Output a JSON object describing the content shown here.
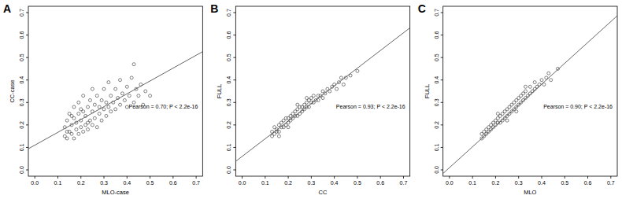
{
  "chart_data": [
    {
      "type": "scatter",
      "title": "A",
      "x_label": "MLO-case",
      "y_label": "CC-case",
      "annotations": [
        "Pearson = 0.70; P < 2.2e-16"
      ],
      "xlim": [
        -0.028,
        0.728
      ],
      "ylim": [
        -0.028,
        0.728
      ],
      "xticks": [
        {
          "value": 0,
          "label": "0.0"
        },
        0.1,
        0.2,
        0.3,
        0.4,
        0.5,
        0.6,
        0.7
      ],
      "yticks": [
        {
          "value": 0,
          "label": "0.0"
        },
        0.1,
        0.2,
        0.3,
        0.4,
        0.5,
        0.6,
        0.7
      ],
      "series": [
        {
          "type": "scatter",
          "marker": "circle",
          "color": "#333333",
          "x": [
            0.13,
            0.13,
            0.14,
            0.14,
            0.15,
            0.15,
            0.16,
            0.16,
            0.17,
            0.17,
            0.17,
            0.18,
            0.18,
            0.19,
            0.19,
            0.19,
            0.2,
            0.2,
            0.21,
            0.21,
            0.21,
            0.22,
            0.22,
            0.23,
            0.23,
            0.24,
            0.24,
            0.25,
            0.25,
            0.25,
            0.26,
            0.26,
            0.27,
            0.27,
            0.28,
            0.28,
            0.29,
            0.29,
            0.3,
            0.3,
            0.31,
            0.31,
            0.32,
            0.32,
            0.33,
            0.33,
            0.34,
            0.35,
            0.35,
            0.36,
            0.37,
            0.37,
            0.38,
            0.39,
            0.4,
            0.4,
            0.41,
            0.42,
            0.43,
            0.44,
            0.45,
            0.46,
            0.47,
            0.48,
            0.43,
            0.5,
            0.14,
            0.16,
            0.2,
            0.23
          ],
          "values": [
            0.15,
            0.19,
            0.14,
            0.22,
            0.17,
            0.25,
            0.16,
            0.2,
            0.14,
            0.23,
            0.28,
            0.18,
            0.21,
            0.16,
            0.25,
            0.3,
            0.19,
            0.22,
            0.17,
            0.26,
            0.33,
            0.2,
            0.24,
            0.18,
            0.28,
            0.22,
            0.31,
            0.2,
            0.26,
            0.36,
            0.23,
            0.29,
            0.19,
            0.33,
            0.25,
            0.28,
            0.22,
            0.31,
            0.27,
            0.36,
            0.24,
            0.3,
            0.28,
            0.39,
            0.26,
            0.33,
            0.3,
            0.27,
            0.36,
            0.32,
            0.29,
            0.4,
            0.34,
            0.31,
            0.37,
            0.28,
            0.33,
            0.41,
            0.3,
            0.36,
            0.33,
            0.38,
            0.29,
            0.35,
            0.47,
            0.33,
            0.17,
            0.24,
            0.27,
            0.21
          ]
        },
        {
          "type": "line",
          "line_style": "solid",
          "color": "#555555",
          "x": [
            -0.028,
            0.728
          ],
          "values": [
            0.094,
            0.526
          ]
        }
      ]
    },
    {
      "type": "scatter",
      "title": "B",
      "x_label": "CC",
      "y_label": "FULL",
      "annotations": [
        "Pearson = 0.93; P < 2.2e-16"
      ],
      "xlim": [
        -0.028,
        0.728
      ],
      "ylim": [
        -0.028,
        0.728
      ],
      "xticks": [
        {
          "value": 0,
          "label": "0.0"
        },
        0.1,
        0.2,
        0.3,
        0.4,
        0.5,
        0.6,
        0.7
      ],
      "yticks": [
        {
          "value": 0,
          "label": "0.0"
        },
        0.1,
        0.2,
        0.3,
        0.4,
        0.5,
        0.6,
        0.7
      ],
      "series": [
        {
          "type": "scatter",
          "marker": "circle",
          "color": "#333333",
          "x": [
            0.13,
            0.13,
            0.14,
            0.14,
            0.15,
            0.15,
            0.16,
            0.16,
            0.17,
            0.17,
            0.18,
            0.18,
            0.19,
            0.19,
            0.2,
            0.2,
            0.21,
            0.21,
            0.22,
            0.22,
            0.23,
            0.23,
            0.24,
            0.24,
            0.25,
            0.25,
            0.26,
            0.26,
            0.27,
            0.27,
            0.28,
            0.28,
            0.29,
            0.29,
            0.3,
            0.3,
            0.31,
            0.31,
            0.32,
            0.33,
            0.33,
            0.34,
            0.35,
            0.35,
            0.36,
            0.37,
            0.38,
            0.39,
            0.4,
            0.41,
            0.42,
            0.43,
            0.44,
            0.45,
            0.47,
            0.5,
            0.2,
            0.24,
            0.16,
            0.28
          ],
          "values": [
            0.15,
            0.17,
            0.16,
            0.19,
            0.17,
            0.18,
            0.17,
            0.2,
            0.19,
            0.21,
            0.19,
            0.22,
            0.2,
            0.23,
            0.21,
            0.23,
            0.22,
            0.24,
            0.23,
            0.25,
            0.24,
            0.26,
            0.24,
            0.27,
            0.25,
            0.28,
            0.26,
            0.28,
            0.27,
            0.29,
            0.28,
            0.3,
            0.28,
            0.31,
            0.3,
            0.32,
            0.3,
            0.33,
            0.31,
            0.33,
            0.31,
            0.33,
            0.35,
            0.32,
            0.34,
            0.36,
            0.35,
            0.37,
            0.38,
            0.36,
            0.39,
            0.41,
            0.38,
            0.41,
            0.42,
            0.44,
            0.19,
            0.29,
            0.15,
            0.32
          ]
        },
        {
          "type": "line",
          "line_style": "solid",
          "color": "#555555",
          "x": [
            -0.028,
            0.728
          ],
          "values": [
            0.038,
            0.632
          ]
        }
      ]
    },
    {
      "type": "scatter",
      "title": "C",
      "x_label": "MLO",
      "y_label": "FULL",
      "annotations": [
        "Pearson = 0.90; P < 2.2e-16"
      ],
      "xlim": [
        -0.028,
        0.728
      ],
      "ylim": [
        -0.028,
        0.728
      ],
      "xticks": [
        {
          "value": 0,
          "label": "0.0"
        },
        0.1,
        0.2,
        0.3,
        0.4,
        0.5,
        0.6,
        0.7
      ],
      "yticks": [
        {
          "value": 0,
          "label": "0.0"
        },
        0.1,
        0.2,
        0.3,
        0.4,
        0.5,
        0.6,
        0.7
      ],
      "series": [
        {
          "type": "scatter",
          "marker": "circle",
          "color": "#333333",
          "x": [
            0.14,
            0.14,
            0.15,
            0.15,
            0.16,
            0.16,
            0.17,
            0.17,
            0.18,
            0.18,
            0.19,
            0.19,
            0.2,
            0.2,
            0.21,
            0.21,
            0.22,
            0.22,
            0.23,
            0.23,
            0.24,
            0.24,
            0.25,
            0.25,
            0.26,
            0.26,
            0.27,
            0.27,
            0.28,
            0.28,
            0.29,
            0.29,
            0.3,
            0.3,
            0.31,
            0.31,
            0.32,
            0.32,
            0.33,
            0.33,
            0.34,
            0.35,
            0.35,
            0.36,
            0.37,
            0.37,
            0.38,
            0.39,
            0.4,
            0.41,
            0.42,
            0.43,
            0.44,
            0.47,
            0.21,
            0.25,
            0.29,
            0.33
          ],
          "values": [
            0.14,
            0.16,
            0.15,
            0.17,
            0.16,
            0.18,
            0.17,
            0.19,
            0.18,
            0.2,
            0.19,
            0.21,
            0.2,
            0.22,
            0.21,
            0.23,
            0.21,
            0.24,
            0.22,
            0.25,
            0.23,
            0.26,
            0.24,
            0.27,
            0.25,
            0.28,
            0.26,
            0.29,
            0.27,
            0.3,
            0.28,
            0.31,
            0.29,
            0.32,
            0.3,
            0.33,
            0.31,
            0.34,
            0.32,
            0.35,
            0.33,
            0.34,
            0.37,
            0.35,
            0.36,
            0.39,
            0.37,
            0.38,
            0.4,
            0.38,
            0.41,
            0.43,
            0.4,
            0.45,
            0.25,
            0.22,
            0.26,
            0.37
          ]
        },
        {
          "type": "line",
          "line_style": "solid",
          "color": "#555555",
          "x": [
            -0.028,
            0.728
          ],
          "values": [
            -0.016,
            0.686
          ]
        }
      ]
    }
  ]
}
